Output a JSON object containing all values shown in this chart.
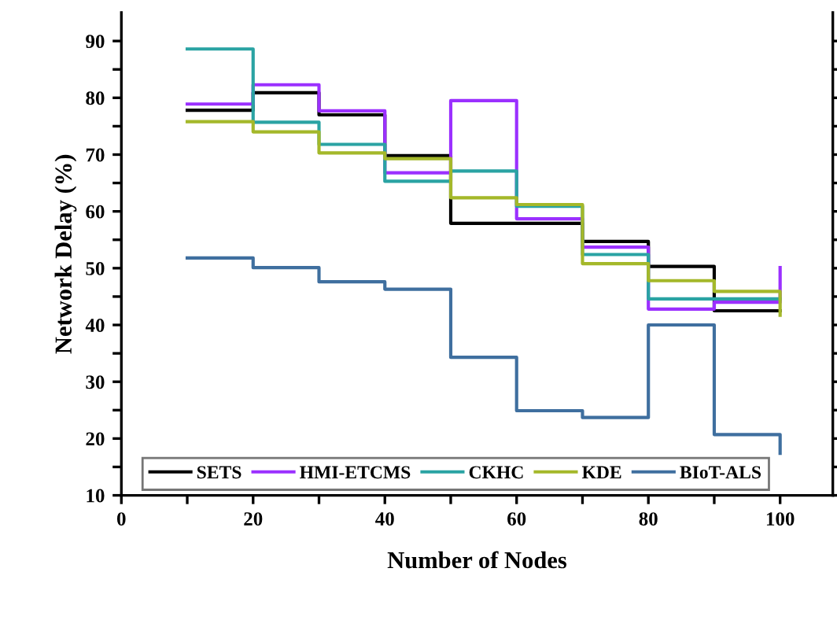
{
  "chart_data": {
    "type": "step",
    "xlabel": "Number of Nodes",
    "ylabel": "Network Delay (%)",
    "x": [
      10,
      20,
      30,
      40,
      50,
      60,
      70,
      80,
      90,
      100
    ],
    "series": [
      {
        "name": "SETS",
        "color": "#000000",
        "values": [
          77.8,
          80.9,
          77.0,
          69.8,
          57.9,
          57.9,
          54.7,
          50.3,
          42.5,
          42.5
        ]
      },
      {
        "name": "HMI-ETCMS",
        "color": "#9b30ff",
        "values": [
          78.9,
          82.3,
          77.7,
          66.8,
          79.5,
          58.7,
          53.7,
          42.8,
          44.0,
          50.1
        ]
      },
      {
        "name": "CKHC",
        "color": "#2aa3a3",
        "values": [
          88.6,
          75.7,
          71.8,
          65.3,
          67.1,
          60.9,
          52.4,
          44.6,
          44.6,
          44.6
        ]
      },
      {
        "name": "KDE",
        "color": "#a4b82a",
        "values": [
          75.8,
          74.0,
          70.3,
          69.3,
          62.4,
          61.2,
          50.8,
          47.8,
          45.9,
          41.7
        ]
      },
      {
        "name": "BIoT-ALS",
        "color": "#3f6f9f",
        "values": [
          51.8,
          50.1,
          47.6,
          46.3,
          34.3,
          24.9,
          23.7,
          40.0,
          20.7,
          17.4
        ]
      }
    ],
    "xlim": [
      0,
      108
    ],
    "ylim": [
      10,
      95
    ],
    "xticks": [
      0,
      {
        "value": 10,
        "label": null
      },
      20,
      {
        "value": 30,
        "label": null
      },
      40,
      {
        "value": 50,
        "label": null
      },
      60,
      {
        "value": 70,
        "label": null
      },
      80,
      {
        "value": 90,
        "label": null
      },
      100
    ],
    "yticks": [
      10,
      {
        "value": 15,
        "label": null
      },
      20,
      {
        "value": 25,
        "label": null
      },
      30,
      {
        "value": 35,
        "label": null
      },
      40,
      {
        "value": 45,
        "label": null
      },
      50,
      {
        "value": 55,
        "label": null
      },
      60,
      {
        "value": 65,
        "label": null
      },
      70,
      {
        "value": 75,
        "label": null
      },
      80,
      {
        "value": 85,
        "label": null
      },
      90
    ],
    "legend": "bottom",
    "grid": false
  }
}
